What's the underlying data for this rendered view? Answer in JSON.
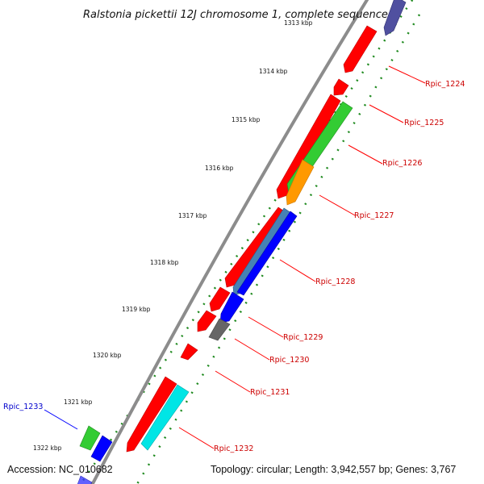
{
  "title": "Ralstonia pickettii 12J chromosome 1, complete sequence",
  "footer": {
    "accession": "Accession: NC_010682",
    "topology": "Topology: circular; Length: 3,942,557 bp; Genes: 3,767"
  },
  "colors": {
    "backbone": "#8c8c8c",
    "tick": "#1f8a1f",
    "label_red": "#cc0000",
    "label_blue": "#0000cc",
    "leader_red": "#ff0000",
    "leader_blue": "#0000ff"
  },
  "scale_labels": [
    {
      "id": "s1313",
      "text": "1313 kbp"
    },
    {
      "id": "s1314",
      "text": "1314 kbp"
    },
    {
      "id": "s1315",
      "text": "1315 kbp"
    },
    {
      "id": "s1316",
      "text": "1316 kbp"
    },
    {
      "id": "s1317",
      "text": "1317 kbp"
    },
    {
      "id": "s1318",
      "text": "1318 kbp"
    },
    {
      "id": "s1319",
      "text": "1319 kbp"
    },
    {
      "id": "s1320",
      "text": "1320 kbp"
    },
    {
      "id": "s1321",
      "text": "1321 kbp"
    },
    {
      "id": "s1322",
      "text": "1322 kbp"
    }
  ],
  "gene_labels": [
    {
      "id": "g1224",
      "text": "Rpic_1224",
      "color": "red"
    },
    {
      "id": "g1225",
      "text": "Rpic_1225",
      "color": "red"
    },
    {
      "id": "g1226",
      "text": "Rpic_1226",
      "color": "red"
    },
    {
      "id": "g1227",
      "text": "Rpic_1227",
      "color": "red"
    },
    {
      "id": "g1228",
      "text": "Rpic_1228",
      "color": "red"
    },
    {
      "id": "g1229",
      "text": "Rpic_1229",
      "color": "red"
    },
    {
      "id": "g1230",
      "text": "Rpic_1230",
      "color": "red"
    },
    {
      "id": "g1231",
      "text": "Rpic_1231",
      "color": "red"
    },
    {
      "id": "g1232",
      "text": "Rpic_1232",
      "color": "red"
    },
    {
      "id": "g1233",
      "text": "Rpic_1233",
      "color": "blue"
    }
  ],
  "feature_colors": {
    "cds_reverse": "#ff0000",
    "cds_green": "#33cc33",
    "cds_orange": "#ff9900",
    "cds_blue": "#0000ff",
    "cds_steel": "#4682b4",
    "cds_gray": "#666666",
    "cds_cyan": "#00e5e5",
    "cds_purple": "#5050a0"
  }
}
